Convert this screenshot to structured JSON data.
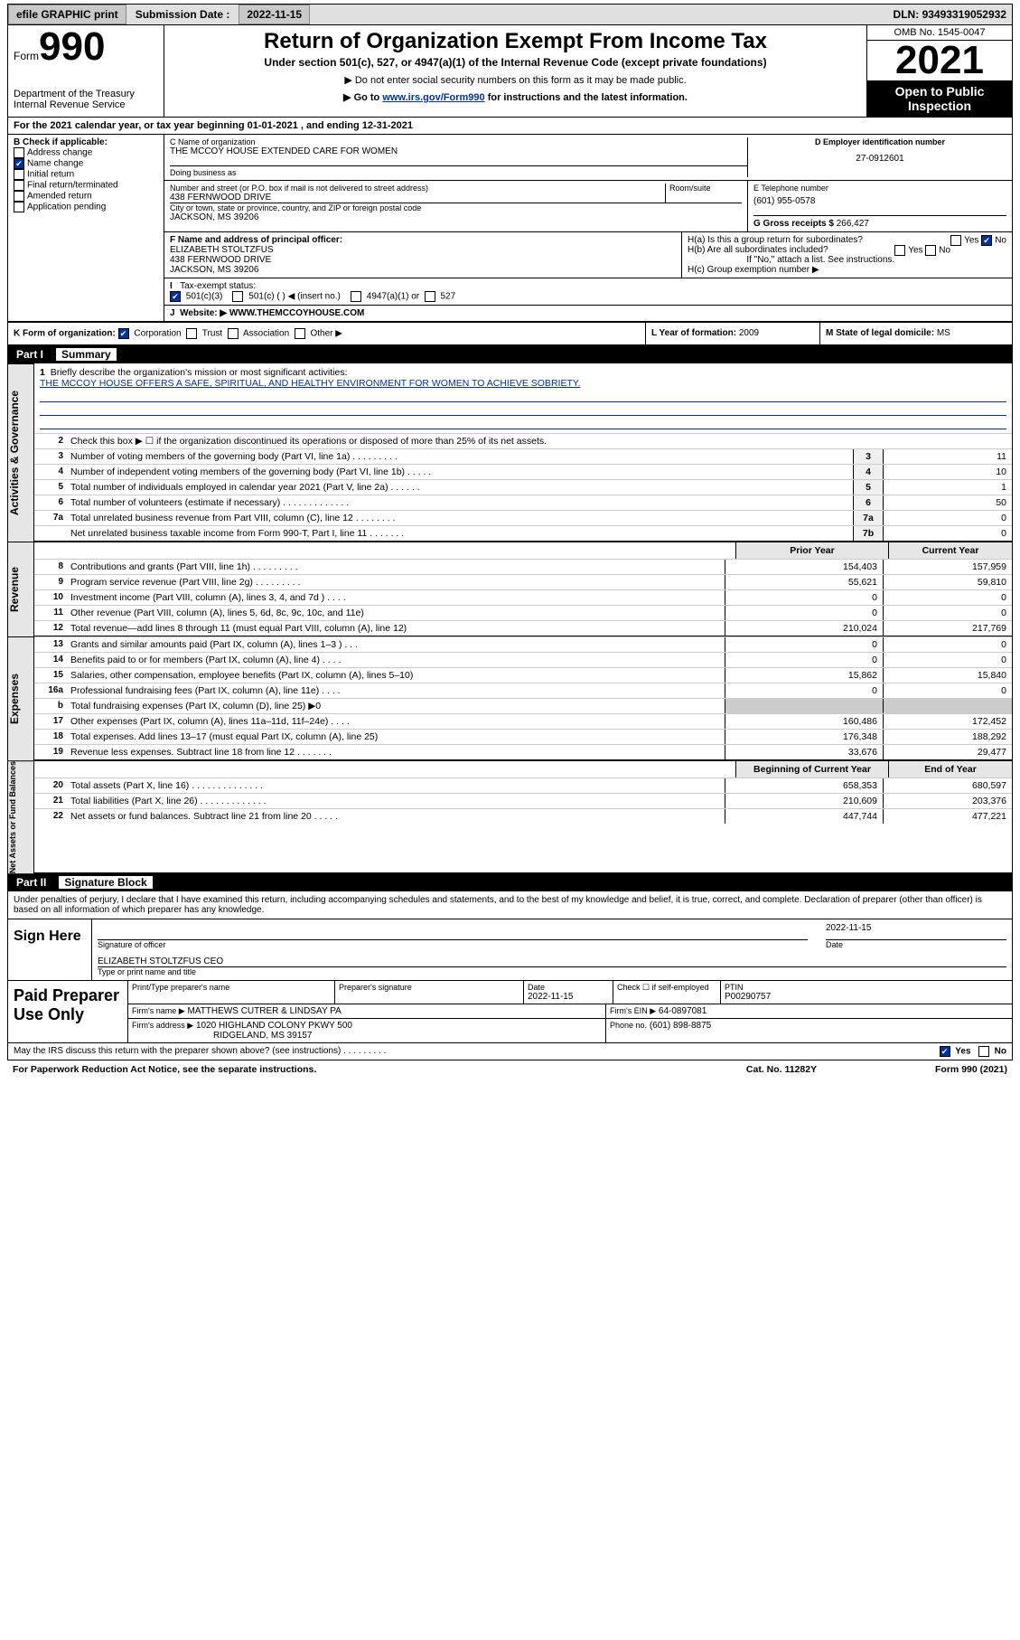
{
  "topbar": {
    "efile": "efile GRAPHIC print",
    "submission_label": "Submission Date :",
    "submission_date": "2022-11-15",
    "dln_label": "DLN:",
    "dln": "93493319052932"
  },
  "header": {
    "form_word": "Form",
    "form_num": "990",
    "dept": "Department of the Treasury Internal Revenue Service",
    "title": "Return of Organization Exempt From Income Tax",
    "sub": "Under section 501(c), 527, or 4947(a)(1) of the Internal Revenue Code (except private foundations)",
    "note1": "▶ Do not enter social security numbers on this form as it may be made public.",
    "note2_pre": "▶ Go to ",
    "note2_link": "www.irs.gov/Form990",
    "note2_post": " for instructions and the latest information.",
    "omb": "OMB No. 1545-0047",
    "year": "2021",
    "open": "Open to Public Inspection"
  },
  "A": {
    "text": "For the 2021 calendar year, or tax year beginning 01-01-2021   , and ending 12-31-2021"
  },
  "B": {
    "label": "B Check if applicable:",
    "items": [
      {
        "txt": "Address change",
        "chk": false
      },
      {
        "txt": "Name change",
        "chk": true
      },
      {
        "txt": "Initial return",
        "chk": false
      },
      {
        "txt": "Final return/terminated",
        "chk": false
      },
      {
        "txt": "Amended return",
        "chk": false
      },
      {
        "txt": "Application pending",
        "chk": false
      }
    ]
  },
  "C": {
    "name_lbl": "C Name of organization",
    "name": "THE MCCOY HOUSE EXTENDED CARE FOR WOMEN",
    "dba_lbl": "Doing business as",
    "addr_lbl": "Number and street (or P.O. box if mail is not delivered to street address)",
    "room_lbl": "Room/suite",
    "addr": "438 FERNWOOD DRIVE",
    "city_lbl": "City or town, state or province, country, and ZIP or foreign postal code",
    "city": "JACKSON, MS  39206"
  },
  "D": {
    "lbl": "D Employer identification number",
    "val": "27-0912601"
  },
  "E": {
    "lbl": "E Telephone number",
    "val": "(601) 955-0578"
  },
  "G": {
    "lbl": "G Gross receipts $",
    "val": "266,427"
  },
  "F": {
    "lbl": "F  Name and address of principal officer:",
    "name": "ELIZABETH STOLTZFUS",
    "addr": "438 FERNWOOD DRIVE",
    "city": "JACKSON, MS  39206"
  },
  "H": {
    "a": "H(a)  Is this a group return for subordinates?",
    "a_yes": "Yes",
    "a_no": "No",
    "b": "H(b)  Are all subordinates included?",
    "b_yes": "Yes",
    "b_no": "No",
    "b_note": "If \"No,\" attach a list. See instructions.",
    "c": "H(c)  Group exemption number ▶"
  },
  "I": {
    "lbl": "Tax-exempt status:",
    "opts": [
      "501(c)(3)",
      "501(c) (  ) ◀ (insert no.)",
      "4947(a)(1) or",
      "527"
    ]
  },
  "J": {
    "lbl": "Website: ▶",
    "val": "WWW.THEMCCOYHOUSE.COM"
  },
  "K": {
    "lbl": "K Form of organization:",
    "opts": [
      "Corporation",
      "Trust",
      "Association",
      "Other ▶"
    ]
  },
  "L": {
    "lbl": "L Year of formation:",
    "val": "2009"
  },
  "M": {
    "lbl": "M State of legal domicile:",
    "val": "MS"
  },
  "part1": {
    "num": "Part I",
    "title": "Summary"
  },
  "summary": {
    "l1_lbl": "Briefly describe the organization's mission or most significant activities:",
    "l1_txt": "THE MCCOY HOUSE OFFERS A SAFE, SPIRITUAL, AND HEALTHY ENVIRONMENT FOR WOMEN TO ACHIEVE SOBRIETY.",
    "l2": "Check this box ▶ ☐  if the organization discontinued its operations or disposed of more than 25% of its net assets.",
    "l3": "Number of voting members of the governing body (Part VI, line 1a)  .    .    .    .    .    .    .    .    .",
    "l4": "Number of independent voting members of the governing body (Part VI, line 1b)   .    .    .    .    .",
    "l5": "Total number of individuals employed in calendar year 2021 (Part V, line 2a)   .    .    .    .    .    .",
    "l6": "Total number of volunteers (estimate if necessary)   .    .    .    .    .    .    .    .    .    .    .    .    .",
    "l7a": "Total unrelated business revenue from Part VIII, column (C), line 12   .    .    .    .    .    .    .    .",
    "l7b": "Net unrelated business taxable income from Form 990-T, Part I, line 11   .    .    .    .    .    .    .",
    "v3": "11",
    "v4": "10",
    "v5": "1",
    "v6": "50",
    "v7a": "0",
    "v7b": "0",
    "prior_hdr": "Prior Year",
    "curr_hdr": "Current Year",
    "rows_rev": [
      {
        "n": "8",
        "t": "Contributions and grants (Part VIII, line 1h)   .    .    .    .    .    .    .    .    .",
        "p": "154,403",
        "c": "157,959"
      },
      {
        "n": "9",
        "t": "Program service revenue (Part VIII, line 2g)   .    .    .    .    .    .    .    .    .",
        "p": "55,621",
        "c": "59,810"
      },
      {
        "n": "10",
        "t": "Investment income (Part VIII, column (A), lines 3, 4, and 7d )   .    .    .    .",
        "p": "0",
        "c": "0"
      },
      {
        "n": "11",
        "t": "Other revenue (Part VIII, column (A), lines 5, 6d, 8c, 9c, 10c, and 11e)",
        "p": "0",
        "c": "0"
      },
      {
        "n": "12",
        "t": "Total revenue—add lines 8 through 11 (must equal Part VIII, column (A), line 12)",
        "p": "210,024",
        "c": "217,769"
      }
    ],
    "rows_exp": [
      {
        "n": "13",
        "t": "Grants and similar amounts paid (Part IX, column (A), lines 1–3 )  .    .    .",
        "p": "0",
        "c": "0"
      },
      {
        "n": "14",
        "t": "Benefits paid to or for members (Part IX, column (A), line 4)  .    .    .    .",
        "p": "0",
        "c": "0"
      },
      {
        "n": "15",
        "t": "Salaries, other compensation, employee benefits (Part IX, column (A), lines 5–10)",
        "p": "15,862",
        "c": "15,840"
      },
      {
        "n": "16a",
        "t": "Professional fundraising fees (Part IX, column (A), line 11e)   .    .    .    .",
        "p": "0",
        "c": "0"
      },
      {
        "n": "b",
        "t": "Total fundraising expenses (Part IX, column (D), line 25) ▶0",
        "p": "shade",
        "c": "shade"
      },
      {
        "n": "17",
        "t": "Other expenses (Part IX, column (A), lines 11a–11d, 11f–24e)  .    .    .    .",
        "p": "160,486",
        "c": "172,452"
      },
      {
        "n": "18",
        "t": "Total expenses. Add lines 13–17 (must equal Part IX, column (A), line 25)",
        "p": "176,348",
        "c": "188,292"
      },
      {
        "n": "19",
        "t": "Revenue less expenses. Subtract line 18 from line 12  .    .    .    .    .    .    .",
        "p": "33,676",
        "c": "29,477"
      }
    ],
    "net_hdr1": "Beginning of Current Year",
    "net_hdr2": "End of Year",
    "rows_net": [
      {
        "n": "20",
        "t": "Total assets (Part X, line 16)  .    .    .    .    .    .    .    .    .    .    .    .    .    .",
        "p": "658,353",
        "c": "680,597"
      },
      {
        "n": "21",
        "t": "Total liabilities (Part X, line 26)  .    .    .    .    .    .    .    .    .    .    .    .    .",
        "p": "210,609",
        "c": "203,376"
      },
      {
        "n": "22",
        "t": "Net assets or fund balances. Subtract line 21 from line 20  .    .    .    .    .",
        "p": "447,744",
        "c": "477,221"
      }
    ]
  },
  "part2": {
    "num": "Part II",
    "title": "Signature Block"
  },
  "sig": {
    "penalties": "Under penalties of perjury, I declare that I have examined this return, including accompanying schedules and statements, and to the best of my knowledge and belief, it is true, correct, and complete. Declaration of preparer (other than officer) is based on all information of which preparer has any knowledge.",
    "sign_here": "Sign Here",
    "sig_officer": "Signature of officer",
    "date_lbl": "Date",
    "date": "2022-11-15",
    "name": "ELIZABETH STOLTZFUS CEO",
    "type_lbl": "Type or print name and title",
    "paid": "Paid Preparer Use Only",
    "print_lbl": "Print/Type preparer's name",
    "prep_sig_lbl": "Preparer's signature",
    "pdate_lbl": "Date",
    "pdate": "2022-11-15",
    "check_lbl": "Check ☐ if self-employed",
    "ptin_lbl": "PTIN",
    "ptin": "P00290757",
    "firm_name_lbl": "Firm's name    ▶",
    "firm_name": "MATTHEWS CUTRER & LINDSAY PA",
    "firm_ein_lbl": "Firm's EIN ▶",
    "firm_ein": "64-0897081",
    "firm_addr_lbl": "Firm's address ▶",
    "firm_addr1": "1020 HIGHLAND COLONY PKWY 500",
    "firm_addr2": "RIDGELAND, MS  39157",
    "phone_lbl": "Phone no.",
    "phone": "(601) 898-8875",
    "may_irs": "May the IRS discuss this return with the preparer shown above? (see instructions)   .    .    .    .    .    .    .    .    .",
    "yes": "Yes",
    "no": "No"
  },
  "footer": {
    "pra": "For Paperwork Reduction Act Notice, see the separate instructions.",
    "cat": "Cat. No. 11282Y",
    "form": "Form 990 (2021)"
  },
  "vlabels": {
    "gov": "Activities & Governance",
    "rev": "Revenue",
    "exp": "Expenses",
    "net": "Net Assets or Fund Balances"
  },
  "colors": {
    "link": "#003399",
    "shade": "#cccccc",
    "hdr_bg": "#000000"
  }
}
